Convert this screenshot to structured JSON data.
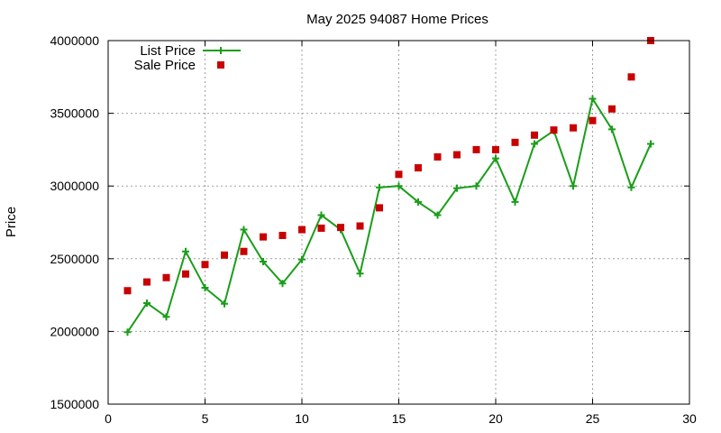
{
  "chart_data": {
    "type": "line",
    "title": "May 2025 94087 Home Prices",
    "xlabel": "",
    "ylabel": "Price",
    "xlim": [
      0,
      30
    ],
    "ylim": [
      1500000,
      4000000
    ],
    "xticks": [
      0,
      5,
      10,
      15,
      20,
      25,
      30
    ],
    "yticks": [
      1500000,
      2000000,
      2500000,
      3000000,
      3500000,
      4000000
    ],
    "grid": true,
    "legend": "top-left",
    "series": [
      {
        "name": "List Price",
        "style": "line-plus",
        "color": "#1a9e1a",
        "x": [
          1,
          2,
          3,
          4,
          5,
          6,
          7,
          8,
          9,
          10,
          11,
          12,
          13,
          14,
          15,
          16,
          17,
          18,
          19,
          20,
          21,
          22,
          23,
          24,
          25,
          26,
          27,
          28
        ],
        "y": [
          1995000,
          2195000,
          2100000,
          2550000,
          2300000,
          2190000,
          2700000,
          2480000,
          2330000,
          2495000,
          2800000,
          2700000,
          2398000,
          2990000,
          3000000,
          2890000,
          2800000,
          2985000,
          3000000,
          3190000,
          2890000,
          3290000,
          3380000,
          3000000,
          3600000,
          3390000,
          2990000,
          3290000
        ]
      },
      {
        "name": "Sale Price",
        "style": "square",
        "color": "#c80000",
        "x": [
          1,
          2,
          3,
          4,
          5,
          6,
          7,
          8,
          9,
          10,
          11,
          12,
          13,
          14,
          15,
          16,
          17,
          18,
          19,
          20,
          21,
          22,
          23,
          24,
          25,
          26,
          27,
          28
        ],
        "y": [
          2280000,
          2340000,
          2370000,
          2395000,
          2460000,
          2525000,
          2550000,
          2650000,
          2660000,
          2700000,
          2710000,
          2715000,
          2725000,
          2850000,
          3080000,
          3125000,
          3200000,
          3215000,
          3250000,
          3250000,
          3300000,
          3350000,
          3385000,
          3400000,
          3450000,
          3530000,
          3750000,
          4000000
        ]
      }
    ]
  }
}
